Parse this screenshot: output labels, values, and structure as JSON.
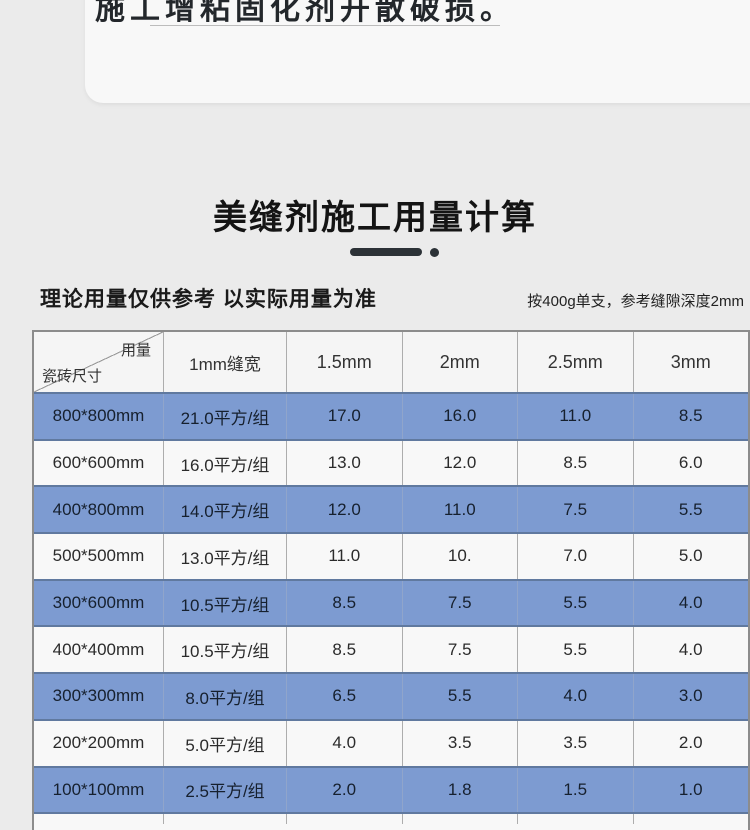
{
  "page": {
    "top_clipped_text": "施工增粘固化剂开散破损。",
    "title": "美缝剂施工用量计算",
    "note_left": "理论用量仅供参考 以实际用量为准",
    "note_right": "按400g单支，参考缝隙深度2mm"
  },
  "table": {
    "corner_top_right": "用量",
    "corner_bottom_left": "瓷砖尺寸",
    "column_headers": [
      "1mm缝宽",
      "1.5mm",
      "2mm",
      "2.5mm",
      "3mm"
    ],
    "rows": [
      {
        "size": "800*800mm",
        "cells": [
          "21.0平方/组",
          "17.0",
          "16.0",
          "11.0",
          "8.5"
        ],
        "highlighted": true
      },
      {
        "size": "600*600mm",
        "cells": [
          "16.0平方/组",
          "13.0",
          "12.0",
          "8.5",
          "6.0"
        ],
        "highlighted": false
      },
      {
        "size": "400*800mm",
        "cells": [
          "14.0平方/组",
          "12.0",
          "11.0",
          "7.5",
          "5.5"
        ],
        "highlighted": true
      },
      {
        "size": "500*500mm",
        "cells": [
          "13.0平方/组",
          "11.0",
          "10.",
          "7.0",
          "5.0"
        ],
        "highlighted": false
      },
      {
        "size": "300*600mm",
        "cells": [
          "10.5平方/组",
          "8.5",
          "7.5",
          "5.5",
          "4.0"
        ],
        "highlighted": true
      },
      {
        "size": "400*400mm",
        "cells": [
          "10.5平方/组",
          "8.5",
          "7.5",
          "5.5",
          "4.0"
        ],
        "highlighted": false
      },
      {
        "size": "300*300mm",
        "cells": [
          "8.0平方/组",
          "6.5",
          "5.5",
          "4.0",
          "3.0"
        ],
        "highlighted": true
      },
      {
        "size": "200*200mm",
        "cells": [
          "5.0平方/组",
          "4.0",
          "3.5",
          "3.5",
          "2.0"
        ],
        "highlighted": false
      },
      {
        "size": "100*100mm",
        "cells": [
          "2.5平方/组",
          "2.0",
          "1.8",
          "1.5",
          "1.0"
        ],
        "highlighted": true
      }
    ]
  },
  "colors": {
    "highlight_row": "#7d9bd1",
    "plain_row": "#f8f8f8",
    "page_background": "#ebebeb",
    "accent_dark": "#2c3237"
  }
}
